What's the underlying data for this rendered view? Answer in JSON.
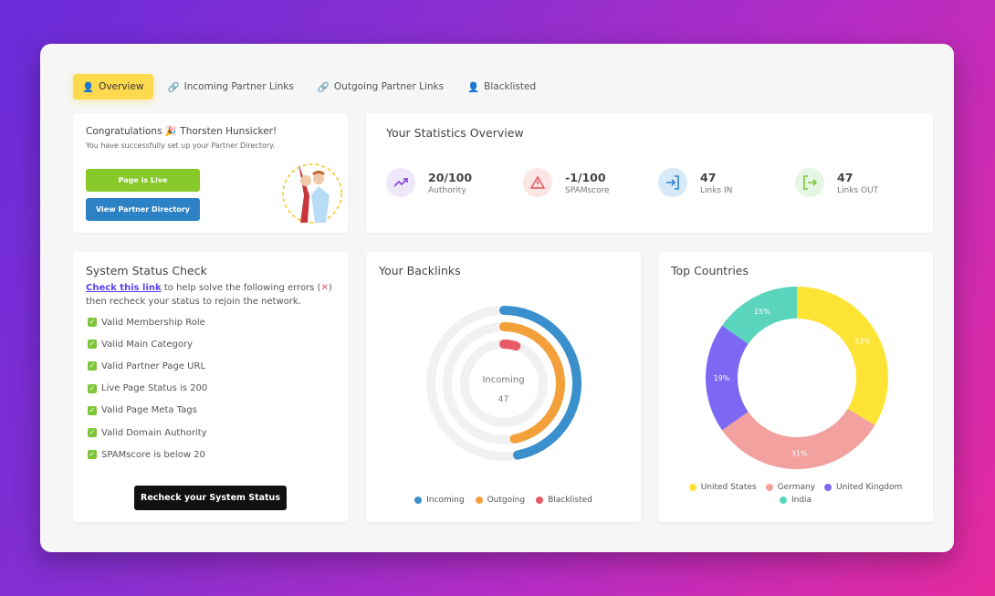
{
  "tabs": [
    {
      "label": "Overview",
      "icon": "user-icon"
    },
    {
      "label": "Incoming Partner Links",
      "icon": "link-icon"
    },
    {
      "label": "Outgoing Partner Links",
      "icon": "link-icon"
    },
    {
      "label": "Blacklisted",
      "icon": "user-x-icon"
    }
  ],
  "congrats": {
    "title": "Congratulations 🎉 Thorsten Hunsicker!",
    "subtitle": "You have successfully set up your Partner Directory.",
    "live_button": "Page is Live",
    "directory_button": "View Partner Directory"
  },
  "stats": {
    "title": "Your Statistics Overview",
    "items": [
      {
        "value": "20/100",
        "label": "Authority",
        "icon": "trending-up-icon",
        "color": "#8a4fd8",
        "bg": "#efe8fb"
      },
      {
        "value": "-1/100",
        "label": "SPAMscore",
        "icon": "warning-icon",
        "color": "#e5545d",
        "bg": "#fbe6e6"
      },
      {
        "value": "47",
        "label": "Links IN",
        "icon": "login-icon",
        "color": "#2f86cf",
        "bg": "#d5e9f8"
      },
      {
        "value": "47",
        "label": "Links OUT",
        "icon": "logout-icon",
        "color": "#7cc63a",
        "bg": "#e6f6e4"
      }
    ]
  },
  "system": {
    "title": "System Status Check",
    "link": "Check this link",
    "text1": " to help solve the following errors (",
    "text2": ")",
    "text3": "then recheck your status to rejoin the network.",
    "checks": [
      "Valid Membership Role",
      "Valid Main Category",
      "Valid Partner Page URL",
      "Live Page Status is 200",
      "Valid Page Meta Tags",
      "Valid Domain Authority",
      "SPAMscore is below 20"
    ],
    "button": "Recheck your System Status"
  },
  "backlinks": {
    "title": "Your Backlinks",
    "center_label": "Incoming",
    "center_value": "47"
  },
  "countries": {
    "title": "Top Countries"
  },
  "chart_data": [
    {
      "type": "radialBar",
      "title": "Your Backlinks",
      "max": 100,
      "series": [
        {
          "name": "Incoming",
          "value": 47,
          "color": "#3a8fcd"
        },
        {
          "name": "Outgoing",
          "value": 47,
          "color": "#f3a03a"
        },
        {
          "name": "Blacklisted",
          "value": 5,
          "color": "#e85a66"
        }
      ]
    },
    {
      "type": "pie",
      "title": "Top Countries",
      "donut": true,
      "legend": "bottom",
      "slices": [
        {
          "name": "United States",
          "value": 33,
          "label": "33%",
          "color": "#fde434"
        },
        {
          "name": "Germany",
          "value": 31,
          "label": "31%",
          "color": "#f2a19f"
        },
        {
          "name": "United Kingdom",
          "value": 19,
          "label": "19%",
          "color": "#7c68f3"
        },
        {
          "name": "India",
          "value": 15,
          "label": "15%",
          "color": "#5ad4bc"
        }
      ]
    }
  ]
}
